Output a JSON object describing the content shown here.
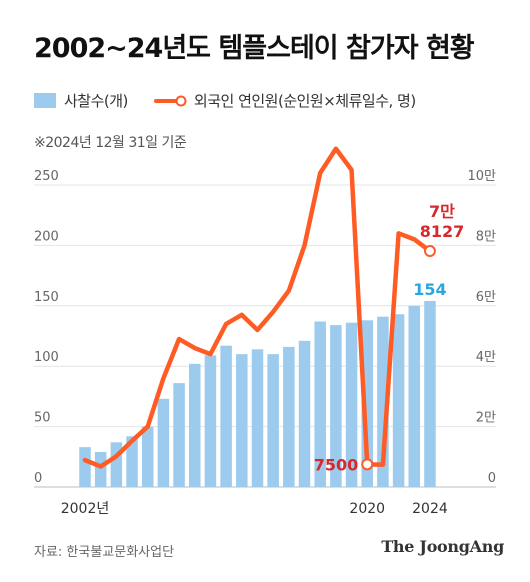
{
  "title": "2002~24년도 템플스테이 참가자 현황",
  "legend": {
    "bars": "사찰수(개)",
    "line": "외국인 연인원(순인원×체류일수, 명)"
  },
  "note": "※2024년 12월 31일 기준",
  "source": "자료: 한국불교문화사업단",
  "brand": "The JoongAng",
  "colors": {
    "bars": "#9ccbed",
    "line": "#ff5b24",
    "label_red": "#d8282b",
    "label_blue": "#2aa7e0"
  },
  "chart_data": {
    "type": "bar",
    "x": [
      2002,
      2003,
      2004,
      2005,
      2006,
      2007,
      2008,
      2009,
      2010,
      2011,
      2012,
      2013,
      2014,
      2015,
      2016,
      2017,
      2018,
      2019,
      2020,
      2021,
      2022,
      2023,
      2024
    ],
    "x_tick_labels": [
      {
        "x": 2002,
        "label": "2002년"
      },
      {
        "x": 2020,
        "label": "2020"
      },
      {
        "x": 2024,
        "label": "2024"
      }
    ],
    "series": [
      {
        "name": "사찰수(개)",
        "type": "bar",
        "axis": "left",
        "values": [
          33,
          29,
          37,
          42,
          50,
          73,
          86,
          102,
          109,
          117,
          110,
          114,
          110,
          116,
          121,
          137,
          134,
          136,
          138,
          141,
          143,
          150,
          154
        ]
      },
      {
        "name": "외국인 연인원(순인원×체류일수, 명)",
        "type": "line",
        "axis": "right",
        "values": [
          8900,
          6800,
          10200,
          15300,
          20000,
          36000,
          49000,
          46000,
          44000,
          54000,
          57000,
          52000,
          58000,
          65000,
          80000,
          104000,
          112000,
          105000,
          7500,
          7400,
          84000,
          82000,
          78127
        ]
      }
    ],
    "left_axis": {
      "ylim": [
        0,
        250
      ],
      "ticks": [
        0,
        50,
        100,
        150,
        200,
        250
      ]
    },
    "right_axis": {
      "ylim": [
        0,
        100000
      ],
      "ticks": [
        0,
        20000,
        40000,
        60000,
        80000,
        100000
      ],
      "tick_labels": [
        "0",
        "2만",
        "4만",
        "6만",
        "8만",
        "10만"
      ]
    },
    "annotations": [
      {
        "text": "7500"
      },
      {
        "text": "7만"
      },
      {
        "text": "8127"
      },
      {
        "text": "154"
      }
    ],
    "grid": "horizontal"
  }
}
